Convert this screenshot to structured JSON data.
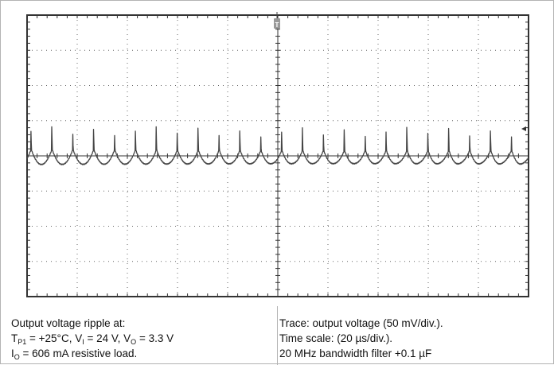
{
  "chart_data": {
    "type": "line",
    "title": "",
    "xlabel": "",
    "ylabel": "",
    "grid": true,
    "x_divisions": 10,
    "y_divisions": 8,
    "x_scale_per_div": "20 µs/div.",
    "y_scale_per_div": "50 mV/div.",
    "xlim_us": [
      -100,
      100
    ],
    "ylim_mV": [
      -200,
      200
    ],
    "trigger_marker": "T",
    "series": [
      {
        "period_us": 8.33,
        "peak_mV": 42,
        "baseline_mV": -5,
        "valley_mV": -12,
        "color": "#444444"
      }
    ]
  },
  "caption": {
    "left": {
      "line1": "Output voltage ripple at:",
      "tp_T": "T",
      "tp_sub": "P1",
      "tp_val": " = +25°C, V",
      "vi_sub": "I",
      "vi_val": " = 24 V, V",
      "vo_sub": "O",
      "vo_val": " = 3.3 V",
      "io_I": "I",
      "io_sub": "O",
      "io_val": " = 606 mA resistive load."
    },
    "right": {
      "line1": "Trace: output voltage (50 mV/div.).",
      "line2": "Time scale: (20 µs/div.).",
      "line3": "20 MHz bandwidth filter +0.1 µF"
    }
  },
  "colors": {
    "grid_dot": "#666666",
    "frame": "#333333",
    "trace": "#444444",
    "divider": "#b3b3b3"
  }
}
